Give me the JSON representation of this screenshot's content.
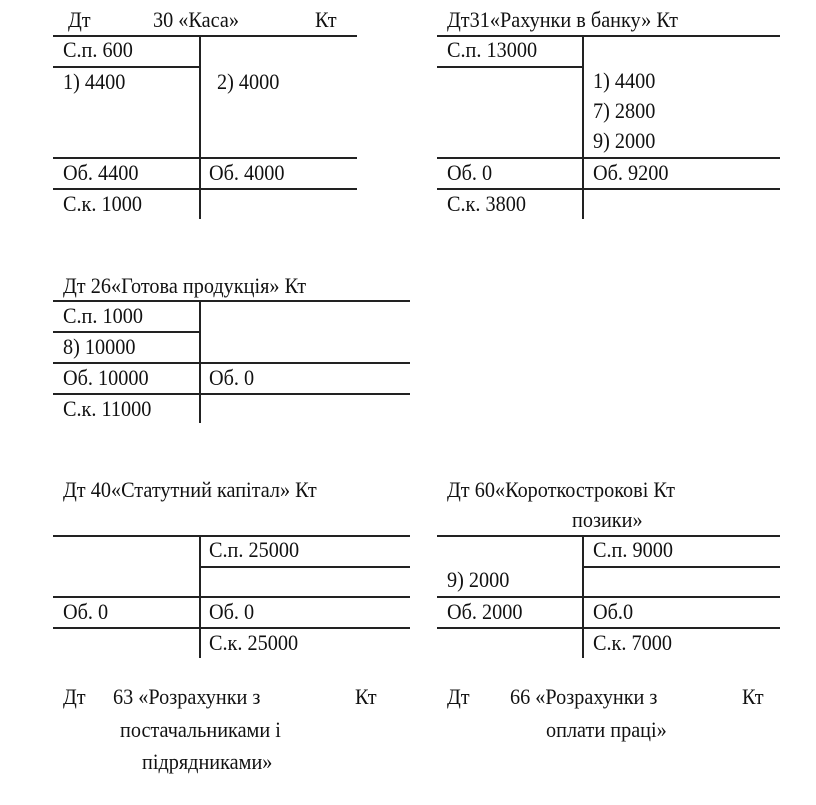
{
  "accounts": {
    "a30": {
      "dt": "Дт",
      "title": "30 «Каса»",
      "kt": "Кт",
      "debit": [
        "С.п.  600",
        "1) 4400"
      ],
      "credit": [
        "2) 4000"
      ],
      "turnover_dt": "Об. 4400",
      "turnover_kt": "Об. 4000",
      "closing": "С.к. 1000"
    },
    "a31": {
      "header": "Дт31«Рахунки в банку»  Кт",
      "debit": [
        "С.п. 13000"
      ],
      "credit": [
        "1) 4400",
        "7) 2800",
        "9) 2000"
      ],
      "turnover_dt": "Об. 0",
      "turnover_kt": "Об. 9200",
      "closing": "С.к. 3800"
    },
    "a26": {
      "header": "Дт 26«Готова продукція» Кт",
      "debit": [
        "С.п. 1000",
        "8) 10000"
      ],
      "turnover_dt": "Об. 10000",
      "turnover_kt": "Об. 0",
      "closing": "С.к. 11000"
    },
    "a40": {
      "header": "Дт 40«Статутний капітал»  Кт",
      "credit": [
        "С.п. 25000"
      ],
      "turnover_dt": "Об. 0",
      "turnover_kt": "Об. 0",
      "closing": "С.к. 25000"
    },
    "a60": {
      "header": "Дт  60«Короткострокові  Кт",
      "header2": "позики»",
      "debit": [
        "9) 2000"
      ],
      "credit": [
        "С.п. 9000"
      ],
      "turnover_dt": "Об. 2000",
      "turnover_kt": "Об.0",
      "closing": "С.к. 7000"
    },
    "a63": {
      "dt": "Дт",
      "title": "63 «Розрахунки з",
      "kt": "Кт",
      "line2": "постачальниками і",
      "line3": "підрядниками»"
    },
    "a66": {
      "dt": "Дт",
      "title": "66 «Розрахунки з",
      "kt": "Кт",
      "line2": "оплати праці»"
    }
  }
}
